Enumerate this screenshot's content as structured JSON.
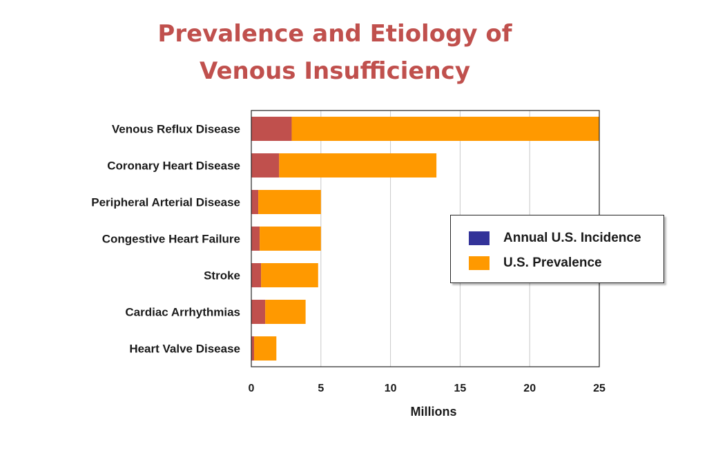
{
  "title": {
    "line1": "Prevalence and Etiology of",
    "line2": "Venous Insufficiency"
  },
  "colors": {
    "incidence_bar": "#c0504d",
    "prevalence_bar": "#ff9900",
    "incidence_legend": "#333399",
    "prevalence_legend": "#ff9900"
  },
  "chart_data": {
    "type": "bar",
    "orientation": "horizontal",
    "stacked": true,
    "categories": [
      "Venous Reflux Disease",
      "Coronary Heart Disease",
      "Peripheral Arterial Disease",
      "Congestive Heart Failure",
      "Stroke",
      "Cardiac Arrhythmias",
      "Heart Valve Disease"
    ],
    "series": [
      {
        "name": "Annual U.S. Incidence",
        "values": [
          2.9,
          2.0,
          0.5,
          0.6,
          0.7,
          1.0,
          0.2
        ]
      },
      {
        "name": "U.S. Prevalence",
        "values": [
          22.1,
          11.3,
          4.5,
          4.4,
          4.1,
          2.9,
          1.6
        ]
      }
    ],
    "xlabel": "Millions",
    "xlim": [
      0,
      25
    ],
    "xticks": [
      0,
      5,
      10,
      15,
      20,
      25
    ],
    "grid": true,
    "legend_position": "right"
  }
}
